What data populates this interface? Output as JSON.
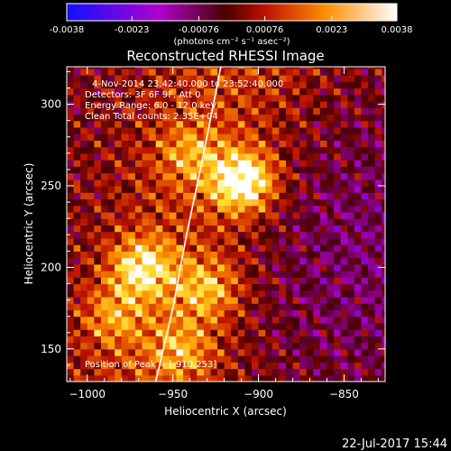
{
  "colorbar": {
    "tick_labels": [
      "-0.0038",
      "-0.0023",
      "-0.00076",
      "0.00076",
      "0.0023",
      "0.0038"
    ],
    "unit_label": "(photons cm⁻² s⁻¹ asec⁻²)",
    "range": [
      -0.0038,
      0.0038
    ]
  },
  "chart_data": {
    "type": "heatmap",
    "title": "Reconstructed RHESSI Image",
    "xlabel": "Heliocentric X (arcsec)",
    "ylabel": "Heliocentric Y (arcsec)",
    "xlim": [
      -1012,
      -826
    ],
    "ylim": [
      130,
      323
    ],
    "x_ticks": [
      -1000,
      -950,
      -900,
      -850
    ],
    "y_ticks": [
      150,
      200,
      250,
      300
    ],
    "info_lines": [
      "4-Nov-2014 23:42:40.000 to 23:52:40.000",
      "Detectors: 3F 6F 9F, Att 0",
      "Energy Range: 6.0 - 12.0 keV",
      "Clean     Total counts: 2.35E+04"
    ],
    "peak_label": "Position of Peak = [-910,253]",
    "peak": [
      -910,
      253
    ],
    "sources": [
      {
        "x": -909,
        "y": 253,
        "value": 0.0038
      },
      {
        "x": -968,
        "y": 200,
        "value": 0.0028
      },
      {
        "x": -930,
        "y": 187,
        "value": 0.002
      },
      {
        "x": -985,
        "y": 170,
        "value": 0.0016
      },
      {
        "x": -945,
        "y": 150,
        "value": 0.0016
      },
      {
        "x": -940,
        "y": 270,
        "value": 0.0015
      }
    ],
    "limb_curve": [
      [
        -960,
        130
      ],
      [
        -950,
        175
      ],
      [
        -942,
        220
      ],
      [
        -932,
        270
      ],
      [
        -922,
        323
      ]
    ]
  },
  "footer": {
    "date": "22-Jul-2017 15:44"
  }
}
